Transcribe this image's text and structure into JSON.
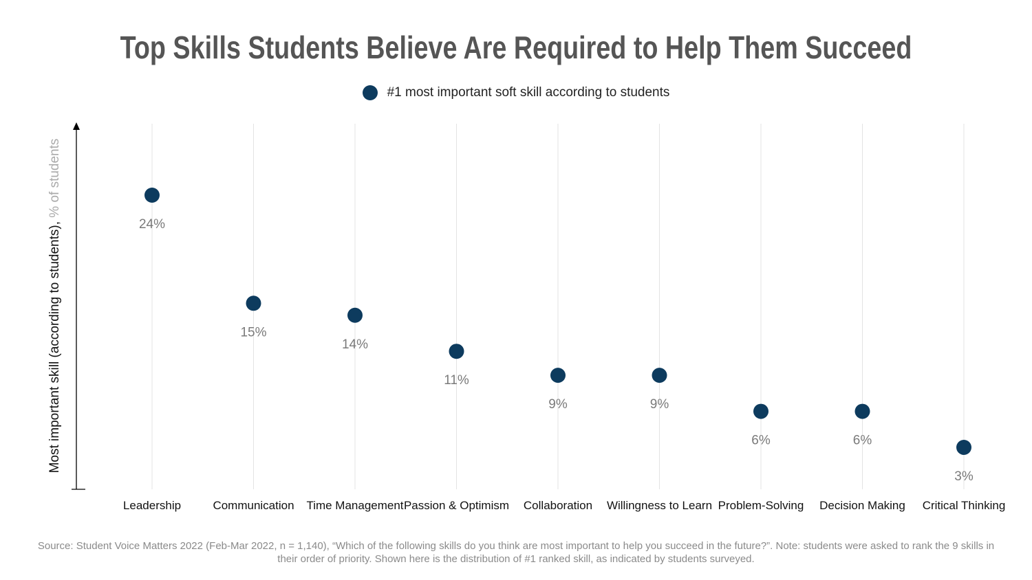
{
  "chart_data": {
    "type": "scatter",
    "title": "Top Skills Students Believe Are Required to Help Them Succeed",
    "legend": {
      "placement": "top-center",
      "entries": [
        "#1 most important soft skill according to students"
      ]
    },
    "ylabel_main": "Most important skill (according to students), ",
    "ylabel_sub": "% of students",
    "categories": [
      "Leadership",
      "Communication",
      "Time Management",
      "Passion & Optimism",
      "Collaboration",
      "Willingness to Learn",
      "Problem-Solving",
      "Decision Making",
      "Critical Thinking"
    ],
    "series": [
      {
        "name": "#1 most important soft skill according to students",
        "values": [
          24,
          15,
          14,
          11,
          9,
          9,
          6,
          6,
          3
        ],
        "labels": [
          "24%",
          "15%",
          "14%",
          "11%",
          "9%",
          "9%",
          "6%",
          "6%",
          "3%"
        ]
      }
    ],
    "ylim": [
      0,
      30
    ],
    "grid": "vertical",
    "colors": {
      "marker": "#0d3b5e",
      "gridline": "#e3e3e3",
      "label": "#7a7a7a",
      "axis": "#000000"
    },
    "source": "Source: Student Voice Matters 2022 (Feb-Mar 2022, n = 1,140), “Which of the following skills do you think are most important to help you succeed in the future?”. Note: students were asked to rank the 9 skills in their order of priority. Shown here is the distribution of #1 ranked skill, as indicated by students surveyed."
  }
}
